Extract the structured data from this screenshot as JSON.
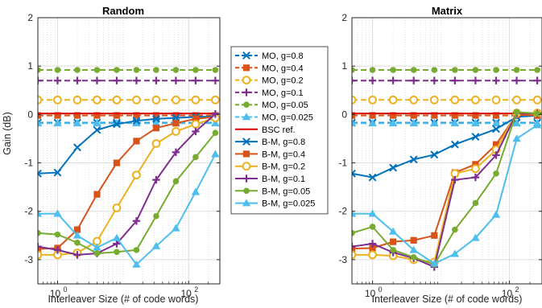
{
  "chart_data": [
    {
      "type": "line",
      "title": "Random",
      "xlabel": "Interleaver Size (# of code words)",
      "ylabel": "Gain (dB)",
      "xscale": "log",
      "xlim": [
        0.5,
        300
      ],
      "ylim": [
        -3.5,
        2
      ],
      "xticks": [
        1,
        100
      ],
      "xtick_labels": [
        "10",
        "10"
      ],
      "xtick_exponents": [
        "0",
        "2"
      ],
      "yticks": [
        -3,
        -2,
        -1,
        0,
        1,
        2
      ],
      "ytick_labels": [
        "-3",
        "-2",
        "-1",
        "0",
        "1",
        "2"
      ],
      "grid": true,
      "x": [
        0.5,
        1,
        2,
        4,
        8,
        16,
        32,
        64,
        128,
        256
      ],
      "series": [
        {
          "name": "MO, g=0.8",
          "style": "dashed",
          "marker": "x",
          "color": "#0072BD",
          "values": [
            -0.17,
            -0.17,
            -0.17,
            -0.17,
            -0.17,
            -0.17,
            -0.17,
            -0.17,
            -0.17,
            -0.17
          ]
        },
        {
          "name": "MO, g=0.4",
          "style": "dashed",
          "marker": "square",
          "color": "#D95319",
          "values": [
            -0.02,
            -0.02,
            -0.02,
            -0.02,
            -0.02,
            -0.02,
            -0.02,
            -0.02,
            -0.02,
            -0.02
          ]
        },
        {
          "name": "MO, g=0.2",
          "style": "dashed",
          "marker": "circle",
          "color": "#EDB120",
          "values": [
            0.3,
            0.3,
            0.3,
            0.3,
            0.3,
            0.3,
            0.3,
            0.3,
            0.3,
            0.3
          ]
        },
        {
          "name": "MO, g=0.1",
          "style": "dashed",
          "marker": "plus",
          "color": "#7E2F8E",
          "values": [
            0.7,
            0.7,
            0.7,
            0.7,
            0.7,
            0.7,
            0.7,
            0.7,
            0.7,
            0.7
          ]
        },
        {
          "name": "MO, g=0.05",
          "style": "dashed",
          "marker": "dot",
          "color": "#77AC30",
          "values": [
            0.92,
            0.92,
            0.92,
            0.92,
            0.92,
            0.92,
            0.92,
            0.92,
            0.92,
            0.92
          ]
        },
        {
          "name": "MO, g=0.025",
          "style": "dashed",
          "marker": "triangle",
          "color": "#4DBEEE",
          "values": [
            -0.18,
            -0.18,
            -0.18,
            -0.18,
            -0.18,
            -0.18,
            -0.18,
            -0.18,
            -0.18,
            -0.18
          ]
        },
        {
          "name": "BSC ref.",
          "style": "solid",
          "marker": "none",
          "color": "#DD0000",
          "values": [
            0.02,
            0.02,
            0.02,
            0.02,
            0.02,
            0.02,
            0.02,
            0.02,
            0.02,
            0.02
          ]
        },
        {
          "name": "B-M, g=0.8",
          "style": "solid",
          "marker": "x",
          "color": "#0072BD",
          "values": [
            -1.22,
            -1.2,
            -0.68,
            -0.32,
            -0.2,
            -0.13,
            -0.09,
            -0.07,
            -0.05,
            -0.04
          ]
        },
        {
          "name": "B-M, g=0.4",
          "style": "solid",
          "marker": "square",
          "color": "#D95319",
          "values": [
            -2.78,
            -2.76,
            -2.38,
            -1.65,
            -1.0,
            -0.55,
            -0.28,
            -0.18,
            -0.09,
            -0.05
          ]
        },
        {
          "name": "B-M, g=0.2",
          "style": "solid",
          "marker": "circle",
          "color": "#EDB120",
          "values": [
            -2.9,
            -2.9,
            -2.86,
            -2.62,
            -1.93,
            -1.25,
            -0.6,
            -0.35,
            -0.2,
            -0.07
          ]
        },
        {
          "name": "B-M, g=0.1",
          "style": "solid",
          "marker": "plus",
          "color": "#7E2F8E",
          "values": [
            -2.73,
            -2.8,
            -2.9,
            -2.87,
            -2.67,
            -2.2,
            -1.35,
            -0.78,
            -0.35,
            0.01
          ]
        },
        {
          "name": "B-M, g=0.05",
          "style": "solid",
          "marker": "dot",
          "color": "#77AC30",
          "values": [
            -2.45,
            -2.48,
            -2.65,
            -2.87,
            -2.84,
            -2.8,
            -2.1,
            -1.38,
            -0.88,
            -0.38
          ]
        },
        {
          "name": "B-M, g=0.025",
          "style": "solid",
          "marker": "triangle",
          "color": "#4DBEEE",
          "values": [
            -2.05,
            -2.05,
            -2.5,
            -2.75,
            -2.55,
            -3.1,
            -2.72,
            -2.35,
            -1.6,
            -0.82
          ]
        }
      ]
    },
    {
      "type": "line",
      "title": "Matrix",
      "xlabel": "Interleaver Size (# of code words)",
      "ylabel": "",
      "xscale": "log",
      "xlim": [
        0.5,
        300
      ],
      "ylim": [
        -3.5,
        2
      ],
      "xticks": [
        1,
        100
      ],
      "xtick_labels": [
        "10",
        "10"
      ],
      "xtick_exponents": [
        "0",
        "2"
      ],
      "yticks": [
        -3,
        -2,
        -1,
        0,
        1,
        2
      ],
      "ytick_labels": [
        "-3",
        "-2",
        "-1",
        "0",
        "1",
        "2"
      ],
      "grid": true,
      "x": [
        0.5,
        1,
        2,
        4,
        8,
        16,
        32,
        64,
        128,
        256
      ],
      "series": [
        {
          "name": "MO, g=0.8",
          "style": "dashed",
          "marker": "x",
          "color": "#0072BD",
          "values": [
            -0.17,
            -0.17,
            -0.17,
            -0.17,
            -0.17,
            -0.17,
            -0.17,
            -0.17,
            -0.17,
            -0.17
          ]
        },
        {
          "name": "MO, g=0.4",
          "style": "dashed",
          "marker": "square",
          "color": "#D95319",
          "values": [
            -0.02,
            -0.02,
            -0.02,
            -0.02,
            -0.02,
            -0.02,
            -0.02,
            -0.02,
            -0.02,
            -0.02
          ]
        },
        {
          "name": "MO, g=0.2",
          "style": "dashed",
          "marker": "circle",
          "color": "#EDB120",
          "values": [
            0.3,
            0.3,
            0.3,
            0.3,
            0.3,
            0.3,
            0.3,
            0.3,
            0.3,
            0.3
          ]
        },
        {
          "name": "MO, g=0.1",
          "style": "dashed",
          "marker": "plus",
          "color": "#7E2F8E",
          "values": [
            0.7,
            0.7,
            0.7,
            0.7,
            0.7,
            0.7,
            0.7,
            0.7,
            0.7,
            0.7
          ]
        },
        {
          "name": "MO, g=0.05",
          "style": "dashed",
          "marker": "dot",
          "color": "#77AC30",
          "values": [
            0.92,
            0.92,
            0.92,
            0.92,
            0.92,
            0.92,
            0.92,
            0.92,
            0.92,
            0.92
          ]
        },
        {
          "name": "MO, g=0.025",
          "style": "dashed",
          "marker": "triangle",
          "color": "#4DBEEE",
          "values": [
            -0.18,
            -0.18,
            -0.18,
            -0.18,
            -0.18,
            -0.18,
            -0.18,
            -0.18,
            -0.18,
            -0.18
          ]
        },
        {
          "name": "BSC ref.",
          "style": "solid",
          "marker": "none",
          "color": "#DD0000",
          "values": [
            0.02,
            0.02,
            0.02,
            0.02,
            0.02,
            0.02,
            0.02,
            0.02,
            0.02,
            0.02
          ]
        },
        {
          "name": "B-M, g=0.8",
          "style": "solid",
          "marker": "x",
          "color": "#0072BD",
          "values": [
            -1.22,
            -1.3,
            -1.1,
            -0.93,
            -0.83,
            -0.62,
            -0.46,
            -0.3,
            -0.05,
            -0.02
          ]
        },
        {
          "name": "B-M, g=0.4",
          "style": "solid",
          "marker": "square",
          "color": "#D95319",
          "values": [
            -2.77,
            -2.76,
            -2.63,
            -2.6,
            -2.5,
            -1.2,
            -1.03,
            -0.62,
            0.0,
            -0.02
          ]
        },
        {
          "name": "B-M, g=0.2",
          "style": "solid",
          "marker": "circle",
          "color": "#EDB120",
          "values": [
            -2.9,
            -2.9,
            -2.92,
            -3.0,
            -3.05,
            -1.22,
            -1.12,
            -0.73,
            0.03,
            0.03
          ]
        },
        {
          "name": "B-M, g=0.1",
          "style": "solid",
          "marker": "plus",
          "color": "#7E2F8E",
          "values": [
            -2.73,
            -2.67,
            -2.85,
            -2.97,
            -3.15,
            -1.35,
            -1.3,
            -0.84,
            0.03,
            0.02
          ]
        },
        {
          "name": "B-M, g=0.05",
          "style": "solid",
          "marker": "dot",
          "color": "#77AC30",
          "values": [
            -2.45,
            -2.32,
            -2.8,
            -2.95,
            -3.1,
            -2.38,
            -1.83,
            -1.22,
            0.05,
            0.02
          ]
        },
        {
          "name": "B-M, g=0.025",
          "style": "solid",
          "marker": "triangle",
          "color": "#4DBEEE",
          "values": [
            -2.05,
            -2.05,
            -2.42,
            -2.8,
            -3.08,
            -2.88,
            -2.55,
            -2.07,
            -0.5,
            -0.22
          ]
        }
      ]
    }
  ],
  "legend": {
    "placement": "between-panels",
    "entries": [
      "MO, g=0.8",
      "MO, g=0.4",
      "MO, g=0.2",
      "MO, g=0.1",
      "MO, g=0.05",
      "MO, g=0.025",
      "BSC ref.",
      "B-M, g=0.8",
      "B-M, g=0.4",
      "B-M, g=0.2",
      "B-M, g=0.1",
      "B-M, g=0.05",
      "B-M, g=0.025"
    ]
  }
}
